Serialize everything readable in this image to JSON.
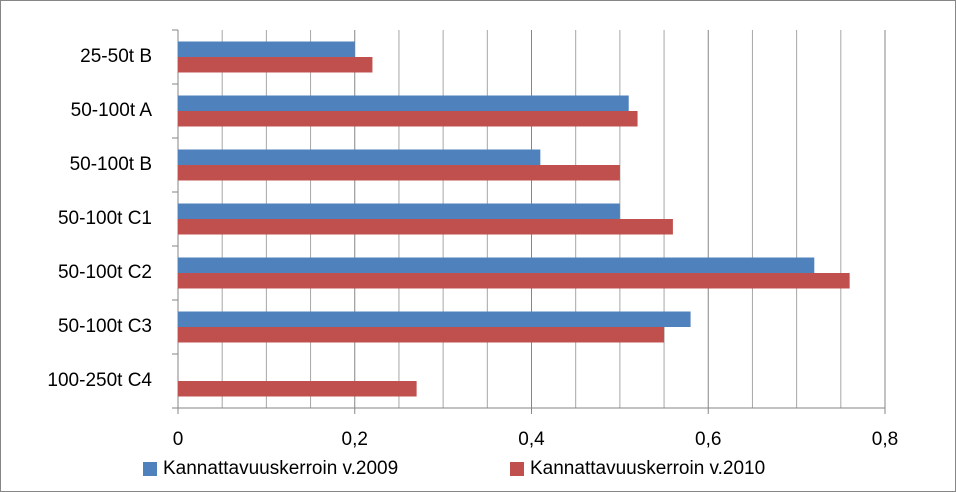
{
  "chart_data": {
    "type": "bar",
    "orientation": "horizontal",
    "categories": [
      "25-50t B",
      "50-100t A",
      "50-100t B",
      "50-100t C1",
      "50-100t C2",
      "50-100t C3",
      "100-250t C4"
    ],
    "series": [
      {
        "name": "Kannattavuuskerroin v.2009",
        "color": "#4f81bd",
        "values": [
          0.2,
          0.51,
          0.41,
          0.5,
          0.72,
          0.58,
          null
        ]
      },
      {
        "name": "Kannattavuuskerroin v.2010",
        "color": "#c0504d",
        "values": [
          0.22,
          0.52,
          0.5,
          0.56,
          0.76,
          0.55,
          0.27
        ]
      }
    ],
    "xlim": [
      0,
      0.8
    ],
    "xticks": [
      0,
      {
        "value": 0.2,
        "label": "0,2"
      },
      {
        "value": 0.4,
        "label": "0,4"
      },
      {
        "value": 0.6,
        "label": "0,6"
      },
      {
        "value": 0.8,
        "label": "0,8"
      }
    ],
    "xminorticks": [
      0.05,
      0.1,
      0.15,
      0.25,
      0.3,
      0.35,
      0.45,
      0.5,
      0.55,
      0.65,
      0.7,
      0.75
    ],
    "grid": true,
    "legend": "bottom"
  }
}
